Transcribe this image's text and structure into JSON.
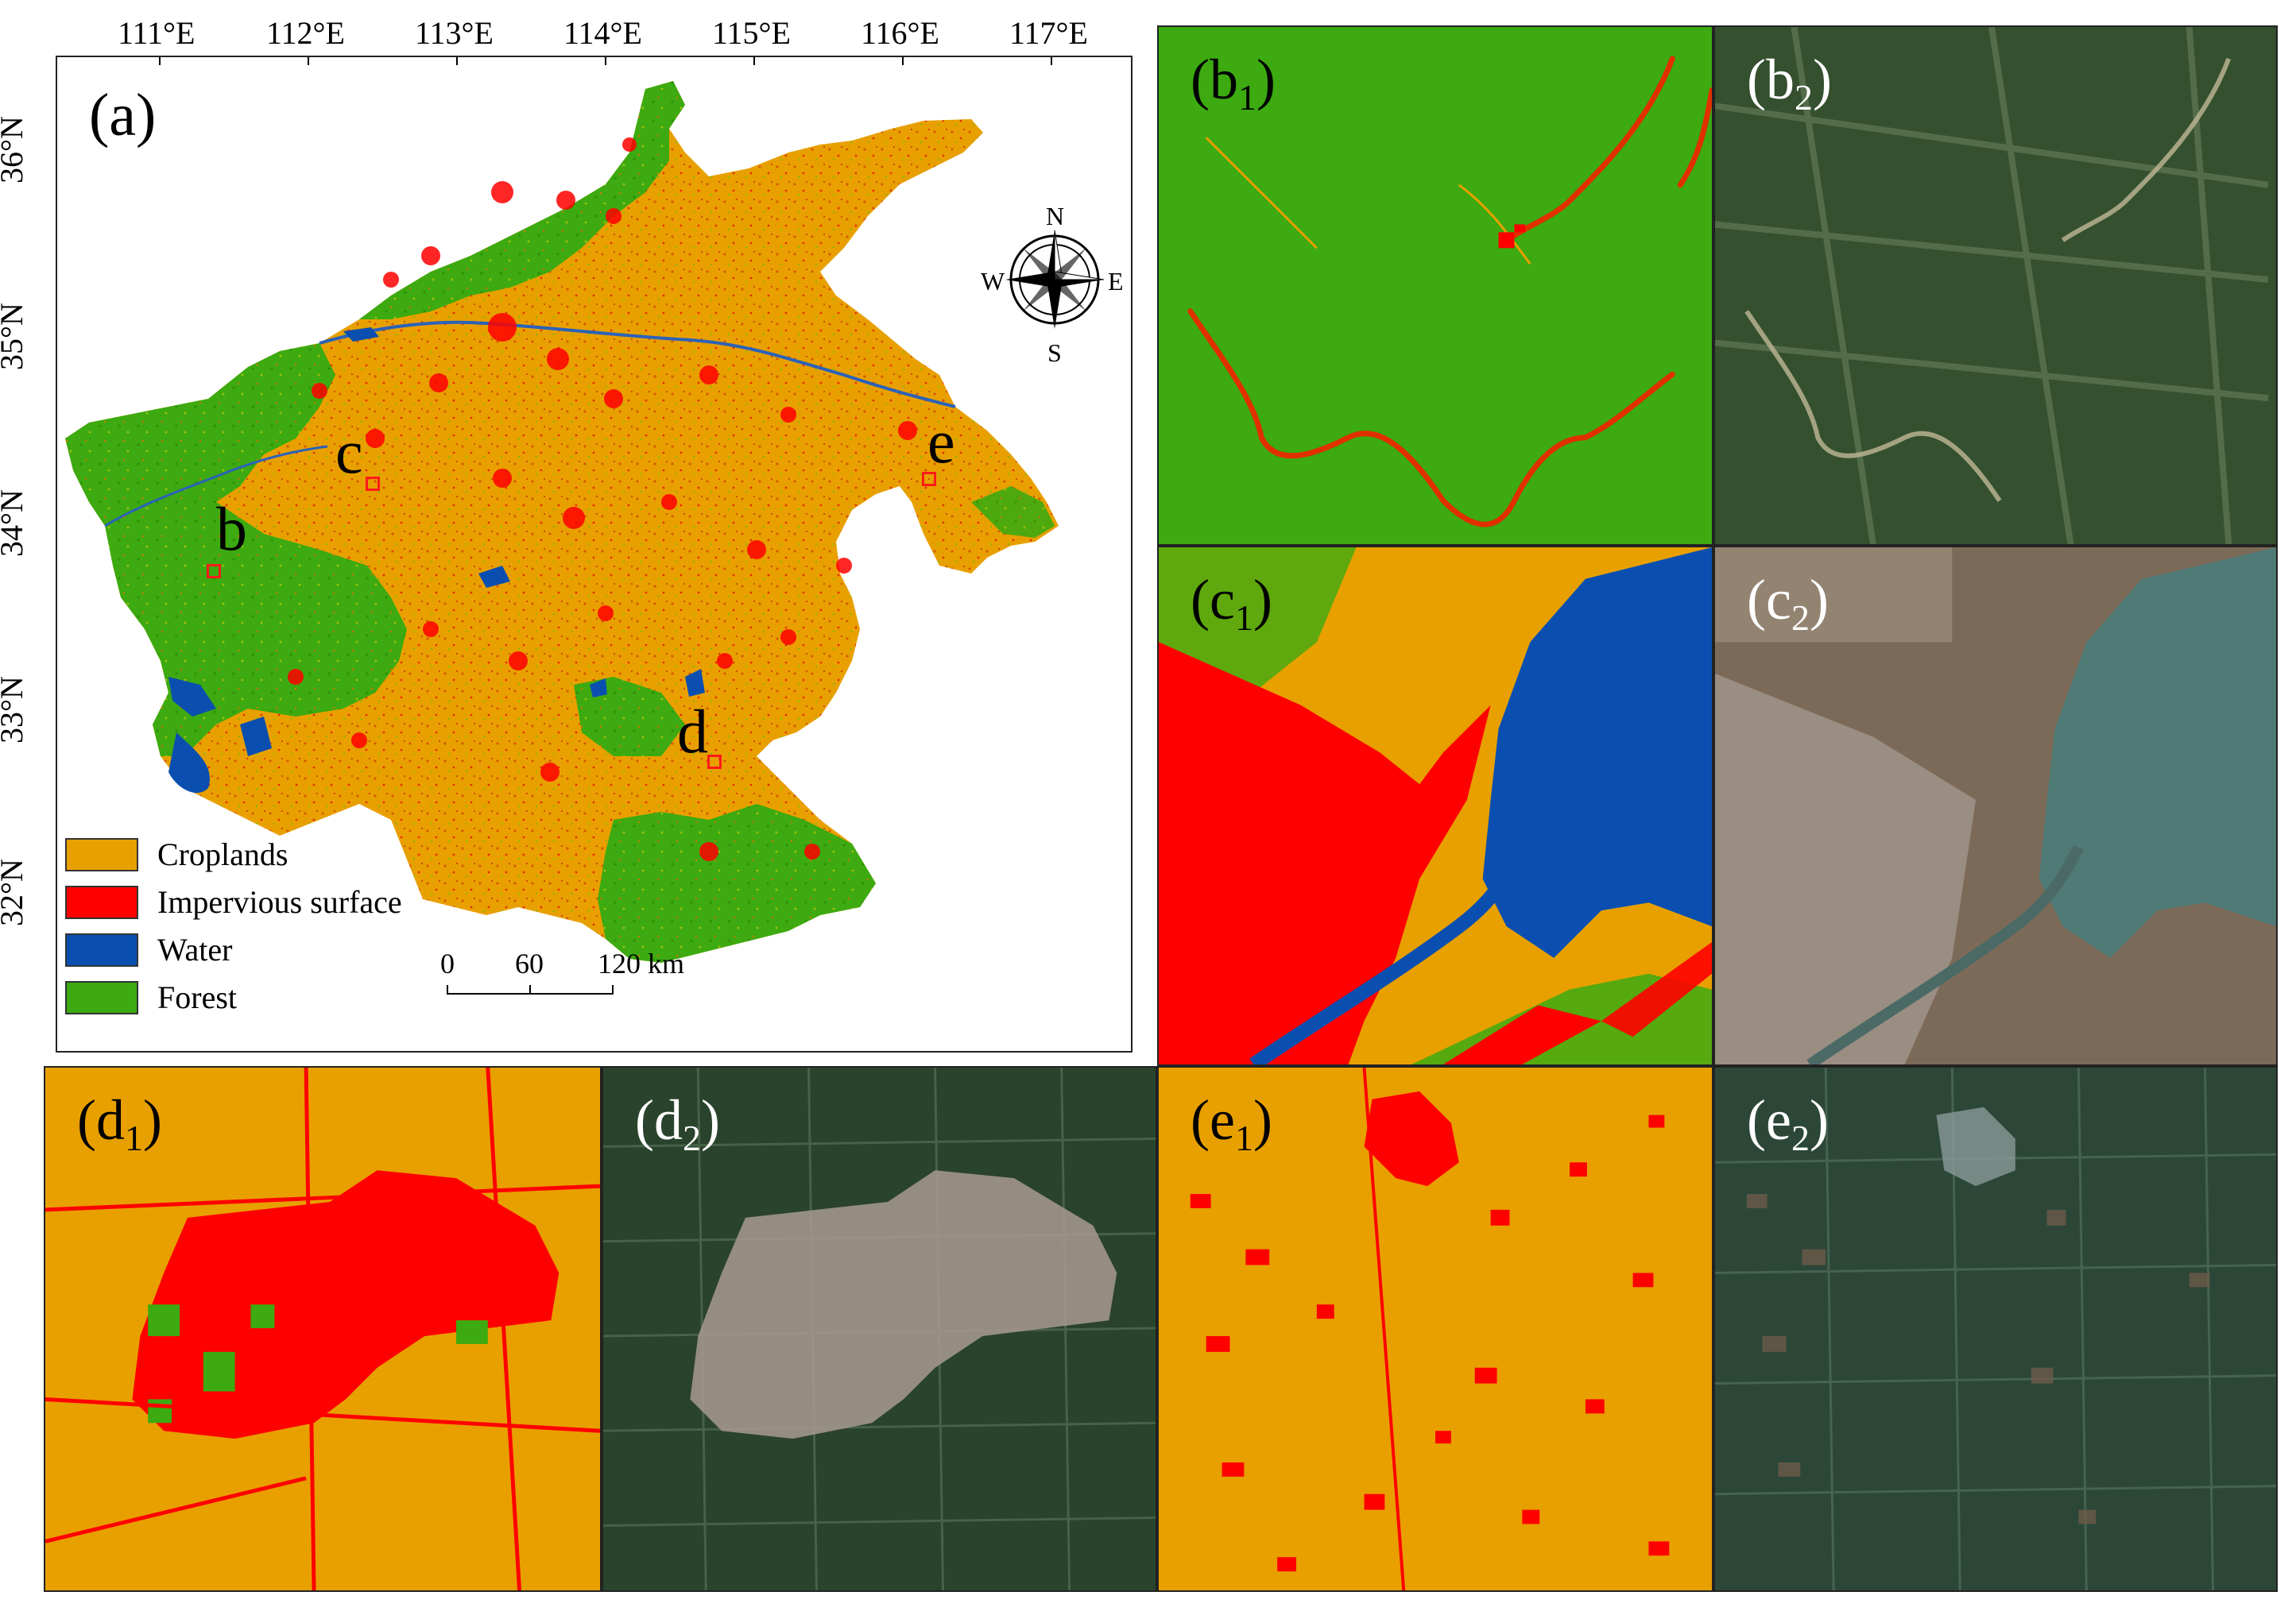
{
  "colors": {
    "croplands": "#E8A000",
    "impervious": "#FF0000",
    "water": "#0A4FB0",
    "forest": "#3CAA10",
    "map_bg": "#ffffff"
  },
  "main_map": {
    "label": "(a)",
    "lon_ticks": [
      "111°E",
      "112°E",
      "113°E",
      "114°E",
      "115°E",
      "116°E",
      "117°E"
    ],
    "lat_ticks": [
      "36°N",
      "35°N",
      "34°N",
      "33°N",
      "32°N"
    ],
    "sites": [
      {
        "id": "b",
        "label": "b"
      },
      {
        "id": "c",
        "label": "c"
      },
      {
        "id": "d",
        "label": "d"
      },
      {
        "id": "e",
        "label": "e"
      }
    ],
    "legend": [
      {
        "label": "Croplands",
        "color": "#E8A000"
      },
      {
        "label": "Impervious surface",
        "color": "#FF0000"
      },
      {
        "label": "Water",
        "color": "#0A4FB0"
      },
      {
        "label": "Forest",
        "color": "#3CAA10"
      }
    ],
    "scalebar": {
      "labels": [
        "0",
        "60",
        "120 km"
      ]
    },
    "compass": {
      "n": "N",
      "s": "S",
      "e": "E",
      "w": "W"
    }
  },
  "panels": {
    "b1": {
      "main": "(b",
      "sub": "1",
      "close": ")"
    },
    "b2": {
      "main": "(b",
      "sub": "2",
      "close": ")"
    },
    "c1": {
      "main": "(c",
      "sub": "1",
      "close": ")"
    },
    "c2": {
      "main": "(c",
      "sub": "2",
      "close": ")"
    },
    "d1": {
      "main": "(d",
      "sub": "1",
      "close": ")"
    },
    "d2": {
      "main": "(d",
      "sub": "2",
      "close": ")"
    },
    "e1": {
      "main": "(e",
      "sub": "1",
      "close": ")"
    },
    "e2": {
      "main": "(e",
      "sub": "2",
      "close": ")"
    }
  }
}
